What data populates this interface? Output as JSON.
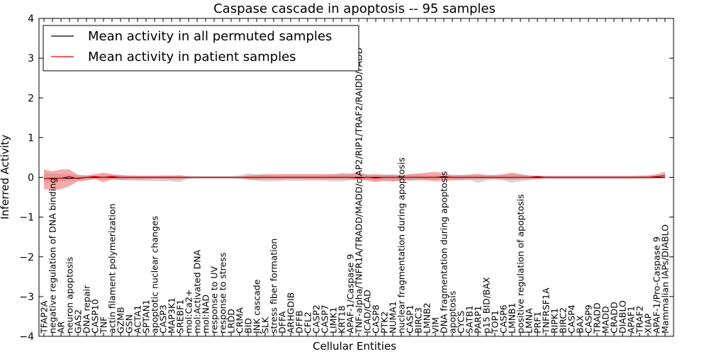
{
  "chart_data": {
    "type": "line",
    "title": "Caspase cascade in apoptosis -- 95 samples",
    "xlabel": "Cellular Entities",
    "ylabel": "Inferred Activity",
    "ylim": [
      -4,
      4
    ],
    "yticks": [
      "4",
      "3",
      "2",
      "1",
      "0",
      "−1",
      "−2",
      "−3",
      "−4"
    ],
    "ytick_values": [
      4,
      3,
      2,
      1,
      0,
      -1,
      -2,
      -3,
      -4
    ],
    "grid": false,
    "legend_position": "top-left",
    "categories": [
      "TFAP2A",
      "negative regulation of DNA binding",
      "AR",
      "neuron apoptosis",
      "GAS2",
      "DNA repair",
      "CASP10",
      "TNF",
      "actin filament polymerization",
      "GZMB",
      "GSN",
      "ACTA1",
      "SPTAN1",
      "apoptotic nuclear changes",
      "CASP3",
      "MAP3K1",
      "SREBF1",
      "mol:Ca2+",
      "mol:Activated DNA",
      "mol:NAD",
      "response to UV",
      "response to stress",
      "LRDD",
      "CRMA",
      "BID",
      "JNK cascade",
      "SLK",
      "stress fiber formation",
      "DFFA",
      "ARHGDIB",
      "DFFB",
      "CFL2",
      "CASP2",
      "CASP7",
      "LIMK1",
      "KRT18",
      "APAF-1/Caspase 9",
      "TNF-alpha/TNFR1A/TRADD/MADD/cIAP2/RIP1/TRAF2/RAIDD/FADD",
      "ICAD/CAD",
      "CASP8",
      "PTK2",
      "NUMA1",
      "nuclear fragmentation during apoptosis",
      "CASP1",
      "BIRC3",
      "LMNB2",
      "VIM",
      "DNA fragmentation during apoptosis",
      "apoptosis",
      "CYCS",
      "SATB1",
      "PARP1",
      "p15 BID/BAX",
      "TOP1",
      "CASP6",
      "LMNB1",
      "positive regulation of apoptosis",
      "LMNA",
      "PRF1",
      "TNFRSF1A",
      "RIPK1",
      "BIRC2",
      "CASP4",
      "BAX",
      "CASP9",
      "TRADD",
      "MADD",
      "CRADD",
      "DIABLO",
      "APAF1",
      "TRAF2",
      "XIAP",
      "APAF-1/Pro-Caspase 9",
      "Mammalian IAPs/DIABLO"
    ],
    "series": [
      {
        "name": "Mean activity in all permuted samples",
        "color": "#000000",
        "band_color": "#c8c8d2",
        "values": [
          -0.03,
          -0.03,
          -0.02,
          -0.02,
          -0.02,
          0.0,
          0.0,
          0.0,
          0.0,
          0.0,
          0.0,
          0.0,
          0.0,
          0.0,
          0.0,
          0.0,
          0.0,
          0.0,
          0.0,
          0.0,
          0.0,
          0.0,
          0.0,
          0.0,
          0.0,
          0.0,
          0.0,
          0.0,
          0.0,
          0.0,
          0.0,
          0.0,
          0.0,
          0.0,
          0.0,
          0.0,
          0.0,
          0.0,
          0.0,
          0.0,
          0.0,
          0.0,
          0.0,
          0.0,
          0.0,
          0.0,
          0.0,
          0.0,
          0.0,
          0.0,
          0.0,
          0.0,
          0.0,
          0.0,
          0.0,
          0.0,
          0.0,
          0.0,
          0.0,
          0.0,
          0.0,
          0.0,
          0.0,
          0.0,
          0.0,
          0.0,
          0.0,
          0.0,
          0.0,
          0.0,
          0.0,
          0.0,
          0.0,
          0.0
        ],
        "lower": [
          -0.12,
          -0.12,
          -0.1,
          -0.09,
          -0.06,
          -0.05,
          -0.04,
          -0.05,
          -0.06,
          -0.07,
          -0.09,
          -0.09,
          -0.09,
          -0.1,
          -0.1,
          -0.1,
          -0.12,
          -0.04,
          -0.03,
          -0.03,
          -0.03,
          -0.03,
          -0.03,
          -0.05,
          -0.06,
          -0.09,
          -0.1,
          -0.1,
          -0.09,
          -0.09,
          -0.09,
          -0.09,
          -0.09,
          -0.09,
          -0.1,
          -0.1,
          -0.08,
          -0.05,
          -0.08,
          -0.09,
          -0.1,
          -0.1,
          -0.07,
          -0.09,
          -0.09,
          -0.06,
          -0.06,
          -0.05,
          -0.05,
          -0.08,
          -0.07,
          -0.14,
          -0.08,
          -0.05,
          -0.08,
          -0.14,
          -0.1,
          -0.08,
          -0.05,
          -0.05,
          -0.05,
          -0.05,
          -0.05,
          -0.05,
          -0.05,
          -0.05,
          -0.05,
          -0.05,
          -0.05,
          -0.05,
          -0.05,
          -0.05,
          -0.04,
          -0.03
        ],
        "upper": [
          0.1,
          0.1,
          0.09,
          0.08,
          0.06,
          0.05,
          0.05,
          0.06,
          0.06,
          0.06,
          0.05,
          0.04,
          0.04,
          0.04,
          0.05,
          0.05,
          0.06,
          0.03,
          0.03,
          0.03,
          0.03,
          0.03,
          0.03,
          0.05,
          0.1,
          0.08,
          0.06,
          0.06,
          0.06,
          0.06,
          0.06,
          0.06,
          0.06,
          0.06,
          0.07,
          0.12,
          0.1,
          0.12,
          0.08,
          0.07,
          0.07,
          0.08,
          0.06,
          0.07,
          0.07,
          0.05,
          0.05,
          0.05,
          0.07,
          0.06,
          0.06,
          0.08,
          0.05,
          0.05,
          0.06,
          0.08,
          0.06,
          0.05,
          0.04,
          0.04,
          0.04,
          0.04,
          0.04,
          0.04,
          0.04,
          0.04,
          0.04,
          0.04,
          0.04,
          0.04,
          0.04,
          0.04,
          0.04,
          0.05
        ]
      },
      {
        "name": "Mean activity in patient samples",
        "color": "#e00000",
        "band_color": "#f07070",
        "values": [
          -0.03,
          -0.02,
          -0.02,
          0.02,
          -0.03,
          0.0,
          0.02,
          0.0,
          0.02,
          0.0,
          0.0,
          0.0,
          0.0,
          0.0,
          0.0,
          0.0,
          0.0,
          0.0,
          0.0,
          0.0,
          0.0,
          0.0,
          0.0,
          0.0,
          0.0,
          0.0,
          0.0,
          0.0,
          0.0,
          0.0,
          0.0,
          0.0,
          0.0,
          0.0,
          0.0,
          0.0,
          0.0,
          -0.02,
          0.0,
          -0.02,
          0.0,
          0.0,
          0.0,
          0.0,
          0.0,
          0.0,
          0.0,
          0.02,
          0.0,
          0.0,
          0.0,
          0.0,
          0.0,
          0.0,
          0.0,
          0.0,
          0.0,
          0.0,
          0.02,
          0.0,
          0.0,
          0.0,
          0.0,
          0.0,
          0.0,
          0.0,
          0.0,
          0.0,
          0.0,
          0.0,
          0.0,
          0.0,
          0.02,
          0.05
        ],
        "lower": [
          -0.3,
          -0.32,
          -0.3,
          -0.22,
          -0.1,
          -0.08,
          -0.05,
          -0.12,
          -0.05,
          -0.06,
          -0.05,
          -0.05,
          -0.05,
          -0.04,
          -0.04,
          -0.05,
          -0.05,
          -0.02,
          -0.02,
          -0.02,
          -0.02,
          -0.02,
          -0.02,
          -0.02,
          -0.05,
          -0.06,
          -0.05,
          -0.05,
          -0.05,
          -0.04,
          -0.04,
          -0.05,
          -0.05,
          -0.05,
          -0.05,
          -0.05,
          -0.05,
          -0.06,
          -0.08,
          -0.12,
          -0.08,
          -0.1,
          -0.08,
          -0.07,
          -0.05,
          -0.08,
          -0.1,
          -0.08,
          -0.08,
          -0.06,
          -0.05,
          -0.05,
          -0.04,
          -0.04,
          -0.05,
          -0.06,
          -0.05,
          -0.04,
          -0.04,
          -0.02,
          -0.02,
          -0.02,
          -0.02,
          -0.02,
          -0.02,
          -0.02,
          -0.02,
          -0.02,
          -0.02,
          -0.02,
          -0.02,
          -0.02,
          -0.01,
          0.0
        ],
        "upper": [
          0.2,
          0.15,
          0.2,
          0.2,
          0.06,
          0.05,
          0.08,
          0.12,
          0.08,
          0.06,
          0.04,
          0.04,
          0.04,
          0.04,
          0.04,
          0.04,
          0.04,
          0.02,
          0.02,
          0.02,
          0.02,
          0.02,
          0.02,
          0.02,
          0.05,
          0.06,
          0.08,
          0.08,
          0.08,
          0.08,
          0.08,
          0.08,
          0.08,
          0.08,
          0.08,
          0.08,
          0.08,
          0.12,
          0.06,
          0.08,
          0.06,
          0.06,
          0.05,
          0.08,
          0.1,
          0.12,
          0.14,
          0.1,
          0.05,
          0.06,
          0.07,
          0.08,
          0.06,
          0.06,
          0.08,
          0.12,
          0.08,
          0.05,
          0.04,
          0.03,
          0.03,
          0.03,
          0.03,
          0.03,
          0.03,
          0.03,
          0.03,
          0.03,
          0.03,
          0.03,
          0.04,
          0.05,
          0.08,
          0.14
        ]
      }
    ]
  }
}
